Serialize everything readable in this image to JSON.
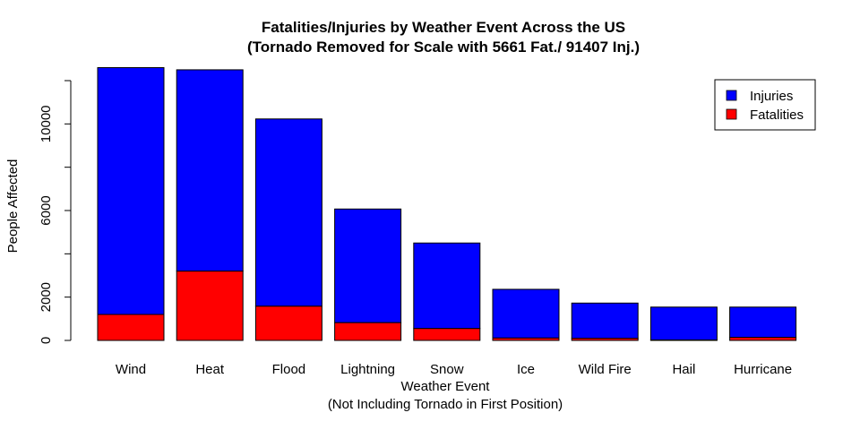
{
  "chart_data": {
    "type": "bar",
    "stacked": true,
    "title": "Fatalities/Injuries by Weather Event Across the US",
    "subtitle": "(Tornado Removed for Scale with 5661 Fat./ 91407 Inj.)",
    "xlabel": "Weather Event",
    "xlabel_sub": "(Not Including Tornado in First Position)",
    "ylabel": "People Affected",
    "ylim": [
      0,
      12000
    ],
    "yticks": [
      0,
      2000,
      6000,
      10000
    ],
    "categories": [
      "Wind",
      "Heat",
      "Flood",
      "Lightning",
      "Snow",
      "Ice",
      "Wild Fire",
      "Hail",
      "Hurricane"
    ],
    "series": [
      {
        "name": "Fatalities",
        "color": "#ff0000",
        "values": [
          1200,
          3200,
          1580,
          820,
          550,
          110,
          95,
          20,
          140
        ]
      },
      {
        "name": "Injuries",
        "color": "#0000ff",
        "values": [
          11400,
          9300,
          8650,
          5250,
          3950,
          2250,
          1630,
          1520,
          1400
        ]
      }
    ],
    "legend": {
      "position": "top-right",
      "entries": [
        "Injuries",
        "Fatalities"
      ]
    },
    "grid": false
  }
}
